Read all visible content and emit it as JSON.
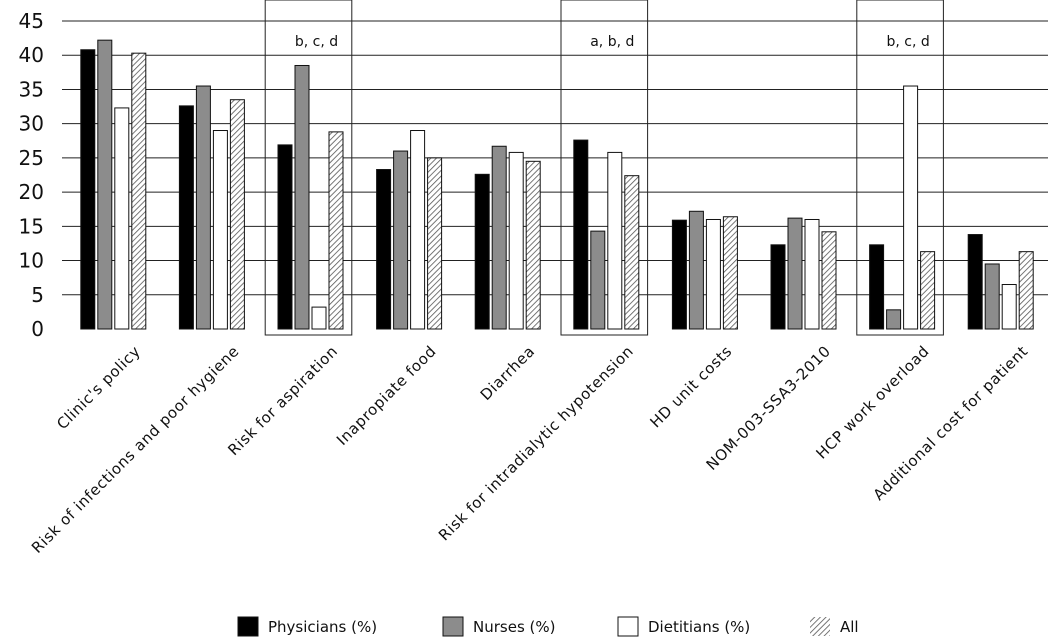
{
  "chart_data": {
    "type": "bar",
    "title": "",
    "xlabel": "",
    "ylabel": "",
    "ylim": [
      0,
      45
    ],
    "yticks": [
      0,
      5,
      10,
      15,
      20,
      25,
      30,
      35,
      40,
      45
    ],
    "grid": "horizontal",
    "legend_position": "bottom",
    "categories": [
      "Clinic's policy",
      "Risk of infections and poor hygiene",
      "Risk for aspiration",
      "Inapropiate food",
      "Diarrhea",
      "Risk for intradialytic hypotension",
      "HD unit costs",
      "NOM-003-SSA3-2010",
      "HCP work overload",
      "Additional cost for patient"
    ],
    "series": [
      {
        "name": "Physicians (%)",
        "fill": "#000000",
        "values": [
          40.8,
          32.6,
          26.9,
          23.3,
          22.6,
          27.6,
          15.9,
          12.3,
          12.3,
          13.8
        ]
      },
      {
        "name": "Nurses (%)",
        "fill": "#8c8c8c",
        "values": [
          42.2,
          35.5,
          38.5,
          26.0,
          26.7,
          14.3,
          17.2,
          16.2,
          2.8,
          9.5
        ]
      },
      {
        "name": "Dietitians (%)",
        "fill": "#ffffff",
        "values": [
          32.3,
          29.0,
          3.2,
          29.0,
          25.8,
          25.8,
          16.0,
          16.0,
          35.5,
          6.5
        ]
      },
      {
        "name": "All",
        "fill": "hatch",
        "values": [
          40.3,
          33.5,
          28.8,
          25.0,
          24.5,
          22.4,
          16.4,
          14.2,
          11.3,
          11.3
        ]
      }
    ],
    "annotations": [
      {
        "category_index": 2,
        "text": "b, c, d"
      },
      {
        "category_index": 5,
        "text": "a, b,     d"
      },
      {
        "category_index": 8,
        "text": "b, c, d"
      }
    ],
    "highlighted_categories": [
      2,
      5,
      8
    ]
  }
}
